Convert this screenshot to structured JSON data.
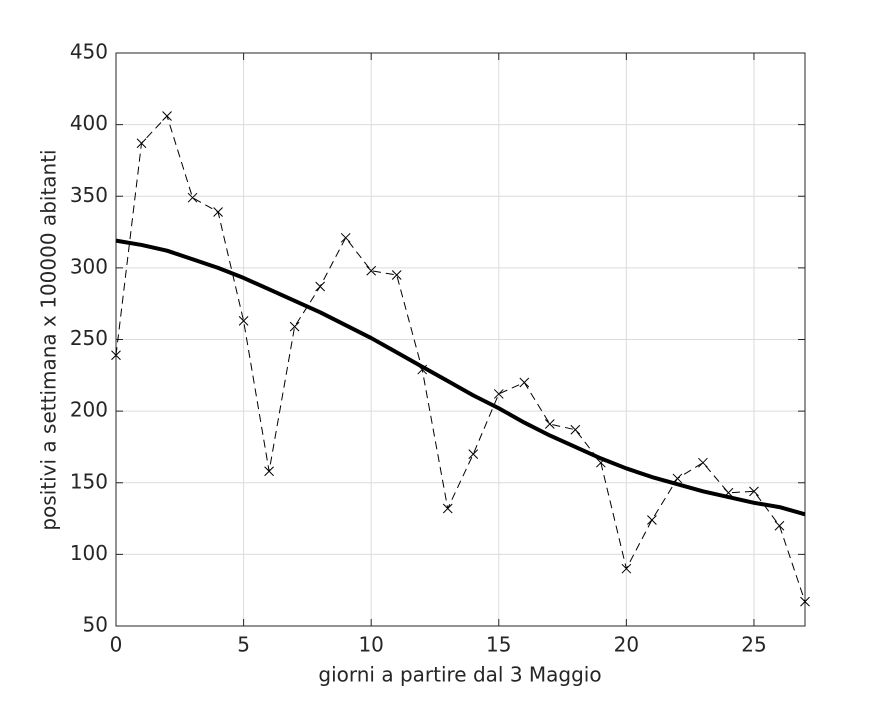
{
  "chart_data": {
    "type": "line",
    "xlabel": "giorni a partire dal 3 Maggio",
    "ylabel": "positivi a settimana x 100000 abitanti",
    "x": [
      0,
      1,
      2,
      3,
      4,
      5,
      6,
      7,
      8,
      9,
      10,
      11,
      12,
      13,
      14,
      15,
      16,
      17,
      18,
      19,
      20,
      21,
      22,
      23,
      24,
      25,
      26,
      27
    ],
    "series": [
      {
        "color": "#000000",
        "dash": true,
        "marker": "x",
        "width": 1,
        "values": [
          239,
          387,
          406,
          349,
          339,
          263,
          158,
          259,
          287,
          321,
          298,
          295,
          229,
          132,
          170,
          212,
          220,
          191,
          187,
          164,
          90,
          124,
          153,
          164,
          143,
          144,
          120,
          67
        ]
      },
      {
        "color": "#000000",
        "dash": false,
        "marker": "none",
        "width": 4,
        "values": [
          319,
          316,
          312,
          306,
          300,
          293,
          285,
          277,
          269,
          260,
          251,
          241,
          231,
          221,
          211,
          202,
          192,
          183,
          175,
          167,
          160,
          154,
          149,
          144,
          140,
          136,
          133,
          128
        ]
      }
    ],
    "xlim": [
      0,
      27
    ],
    "xticks": [
      0,
      5,
      10,
      15,
      20,
      25
    ],
    "ylim": [
      50,
      450
    ],
    "yticks": [
      50,
      100,
      150,
      200,
      250,
      300,
      350,
      400,
      450
    ],
    "grid": true
  }
}
